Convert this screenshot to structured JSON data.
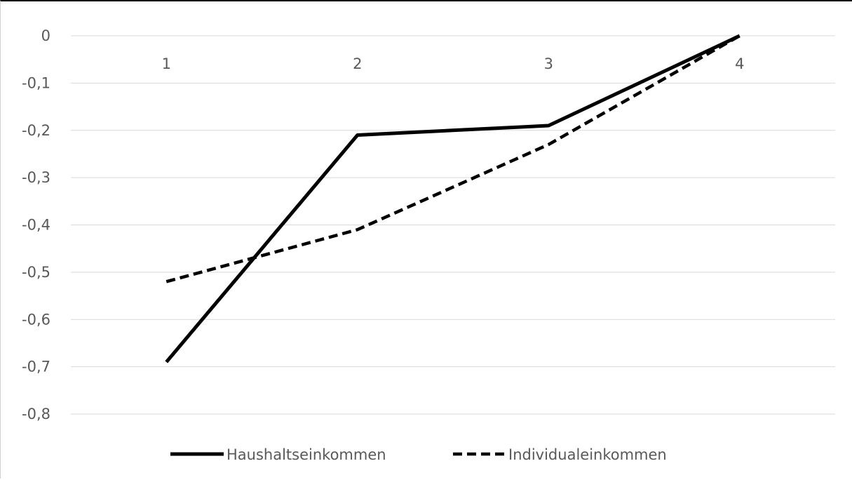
{
  "chart_data": {
    "type": "line",
    "categories": [
      "1",
      "2",
      "3",
      "4"
    ],
    "series": [
      {
        "name": "Haushaltseinkommen",
        "values": [
          -0.69,
          -0.21,
          -0.19,
          0.0
        ],
        "style": "solid",
        "color": "#000000"
      },
      {
        "name": "Individualeinkommen",
        "values": [
          -0.52,
          -0.41,
          -0.23,
          0.0
        ],
        "style": "dashed",
        "color": "#000000"
      }
    ],
    "y_ticks": [
      "0",
      "-0,1",
      "-0,2",
      "-0,3",
      "-0,4",
      "-0,5",
      "-0,6",
      "-0,7",
      "-0,8"
    ],
    "ylim": [
      -0.8,
      0
    ],
    "category_axis_position": "top",
    "grid": true,
    "gridline_color": "#d9d9d9",
    "text_color": "#595959",
    "legend_position": "bottom",
    "title": "",
    "xlabel": "",
    "ylabel": ""
  }
}
